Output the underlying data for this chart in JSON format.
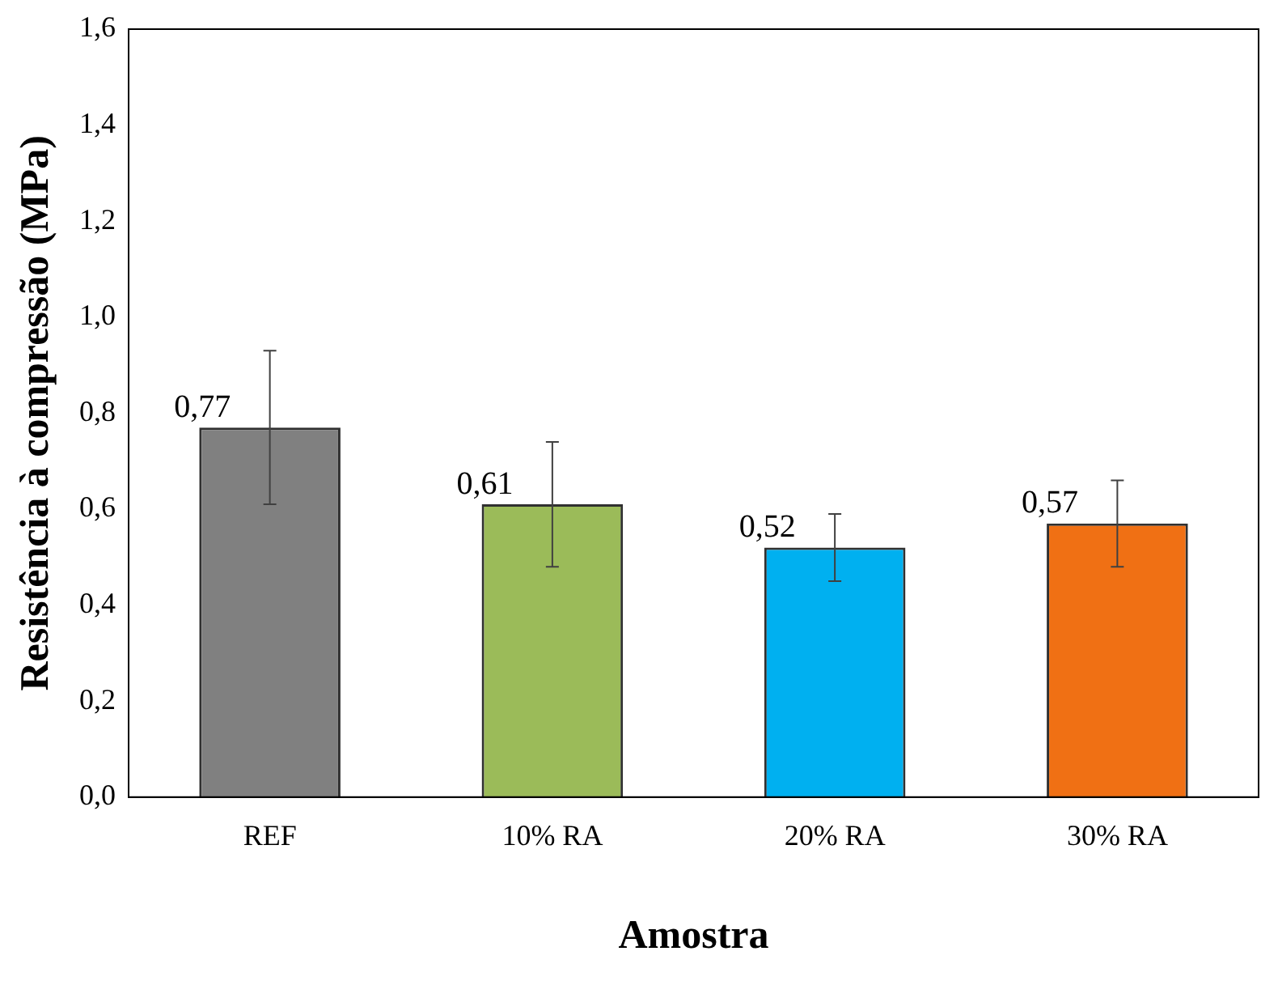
{
  "chart_data": {
    "type": "bar",
    "xlabel": "Amostra",
    "ylabel": "Resistência à compressão (MPa)",
    "categories": [
      "REF",
      "10% RA",
      "20% RA",
      "30% RA"
    ],
    "values": [
      0.77,
      0.61,
      0.52,
      0.57
    ],
    "colors": [
      "#808080",
      "#9bbb59",
      "#00b0f0",
      "#f07014"
    ],
    "errors": [
      0.16,
      0.13,
      0.07,
      0.09
    ],
    "ylim": [
      0,
      1.6
    ],
    "yticks": [
      {
        "value": 0,
        "label": "0,0"
      },
      {
        "value": 0.2,
        "label": "0,2"
      },
      {
        "value": 0.4,
        "label": "0,4"
      },
      {
        "value": 0.6,
        "label": "0,6"
      },
      {
        "value": 0.8,
        "label": "0,8"
      },
      {
        "value": 1,
        "label": "1,0"
      },
      {
        "value": 1.2,
        "label": "1,2"
      },
      {
        "value": 1.4,
        "label": "1,4"
      },
      {
        "value": 1.6,
        "label": "1,6"
      }
    ],
    "value_labels": [
      "0,77",
      "0,61",
      "0,52",
      "0,57"
    ],
    "grid": false,
    "legend": false
  }
}
